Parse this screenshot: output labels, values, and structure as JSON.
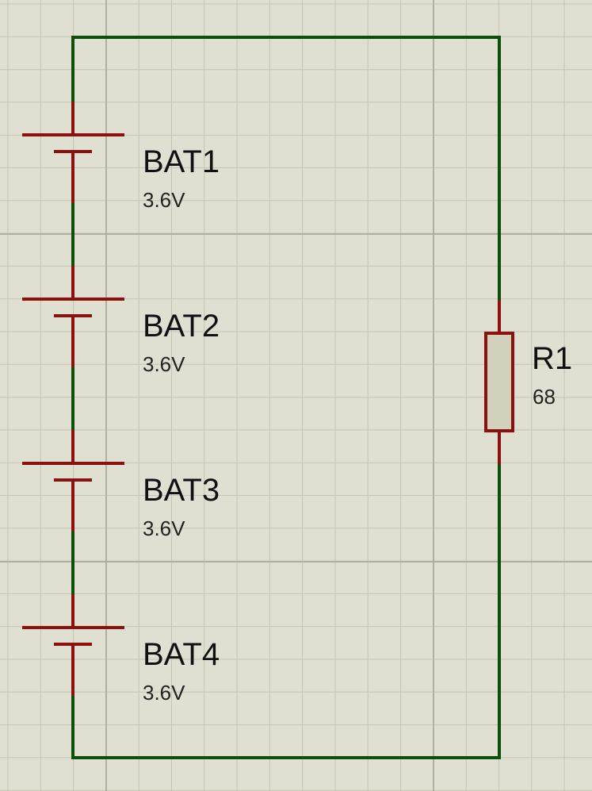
{
  "batteries": [
    {
      "name": "BAT1",
      "value": "3.6V"
    },
    {
      "name": "BAT2",
      "value": "3.6V"
    },
    {
      "name": "BAT3",
      "value": "3.6V"
    },
    {
      "name": "BAT4",
      "value": "3.6V"
    }
  ],
  "resistor": {
    "name": "R1",
    "value": "68"
  }
}
